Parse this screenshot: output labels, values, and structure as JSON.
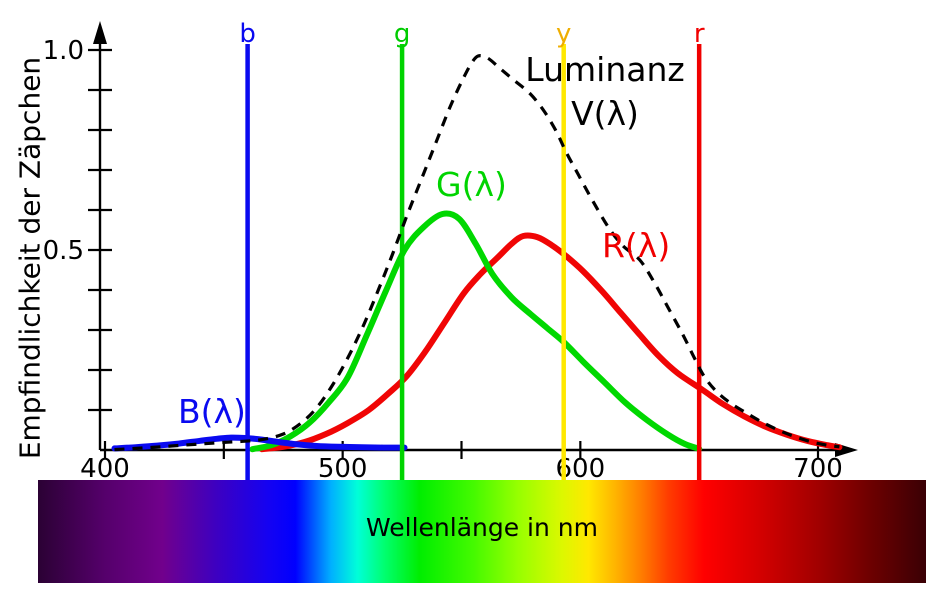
{
  "labels": {
    "luminanz": "Luminanz",
    "v": "V(λ)",
    "g": "G(λ)",
    "r": "R(λ)",
    "b": "B(λ)"
  },
  "chart_data": {
    "type": "line",
    "title": "",
    "ylabel": "Empfindlichkeit der Zäpchen",
    "xlabel": "Wellenlänge in nm",
    "xlim": [
      400,
      700
    ],
    "ylim": [
      0,
      1.05
    ],
    "grid": false,
    "x_axis": {
      "unit": "nm",
      "ticks": [
        {
          "wavelength": 400,
          "label": "400"
        },
        {
          "wavelength": 450,
          "label": ""
        },
        {
          "wavelength": 500,
          "label": "500"
        },
        {
          "wavelength": 550,
          "label": ""
        },
        {
          "wavelength": 600,
          "label": "600"
        },
        {
          "wavelength": 650,
          "label": ""
        },
        {
          "wavelength": 700,
          "label": "700"
        }
      ]
    },
    "y_axis": {
      "ticks": [
        {
          "value": 1.0,
          "label": "1.0"
        },
        {
          "value": 0.9,
          "label": ""
        },
        {
          "value": 0.8,
          "label": ""
        },
        {
          "value": 0.7,
          "label": ""
        },
        {
          "value": 0.6,
          "label": ""
        },
        {
          "value": 0.5,
          "label": "0.5"
        },
        {
          "value": 0.4,
          "label": ""
        },
        {
          "value": 0.3,
          "label": ""
        },
        {
          "value": 0.2,
          "label": ""
        },
        {
          "value": 0.1,
          "label": ""
        }
      ]
    },
    "markers": [
      {
        "label": "b",
        "wavelength": 460,
        "line_color": "#0a0af0",
        "label_color": "#0a0af0"
      },
      {
        "label": "g",
        "wavelength": 525,
        "line_color": "#00d400",
        "label_color": "#00cc00"
      },
      {
        "label": "y",
        "wavelength": 593,
        "line_color": "#ffe800",
        "label_color": "#efae00"
      },
      {
        "label": "r",
        "wavelength": 650,
        "line_color": "#f00000",
        "label_color": "#f00000"
      }
    ],
    "series": [
      {
        "name": "R(λ)",
        "color": "#f00505",
        "style": "solid",
        "width": 6,
        "points": [
          [
            466,
            0.002
          ],
          [
            475,
            0.008
          ],
          [
            484,
            0.02
          ],
          [
            493,
            0.04
          ],
          [
            502,
            0.067
          ],
          [
            511,
            0.1
          ],
          [
            519,
            0.14
          ],
          [
            527,
            0.185
          ],
          [
            535,
            0.248
          ],
          [
            543,
            0.32
          ],
          [
            551,
            0.392
          ],
          [
            558,
            0.44
          ],
          [
            565,
            0.48
          ],
          [
            571,
            0.515
          ],
          [
            576,
            0.535
          ],
          [
            582,
            0.532
          ],
          [
            588,
            0.512
          ],
          [
            594,
            0.485
          ],
          [
            601,
            0.448
          ],
          [
            609,
            0.398
          ],
          [
            617,
            0.343
          ],
          [
            625,
            0.288
          ],
          [
            633,
            0.235
          ],
          [
            641,
            0.192
          ],
          [
            651,
            0.152
          ],
          [
            660,
            0.115
          ],
          [
            669,
            0.084
          ],
          [
            678,
            0.058
          ],
          [
            687,
            0.038
          ],
          [
            696,
            0.022
          ],
          [
            704,
            0.012
          ],
          [
            709,
            0.007
          ]
        ]
      },
      {
        "name": "G(λ)",
        "color": "#00d800",
        "style": "solid",
        "width": 6,
        "points": [
          [
            462,
            0.002
          ],
          [
            470,
            0.012
          ],
          [
            478,
            0.034
          ],
          [
            486,
            0.068
          ],
          [
            494,
            0.118
          ],
          [
            502,
            0.18
          ],
          [
            510,
            0.285
          ],
          [
            518,
            0.395
          ],
          [
            526,
            0.5
          ],
          [
            534,
            0.557
          ],
          [
            542,
            0.59
          ],
          [
            549,
            0.578
          ],
          [
            556,
            0.515
          ],
          [
            563,
            0.44
          ],
          [
            571,
            0.382
          ],
          [
            579,
            0.34
          ],
          [
            586,
            0.305
          ],
          [
            593,
            0.27
          ],
          [
            601,
            0.222
          ],
          [
            610,
            0.17
          ],
          [
            619,
            0.118
          ],
          [
            628,
            0.075
          ],
          [
            637,
            0.038
          ],
          [
            644,
            0.015
          ],
          [
            650,
            0.003
          ]
        ]
      },
      {
        "name": "B(λ)",
        "color": "#0a0af0",
        "style": "solid",
        "width": 6,
        "points": [
          [
            404,
            0.004
          ],
          [
            413,
            0.007
          ],
          [
            422,
            0.011
          ],
          [
            431,
            0.016
          ],
          [
            440,
            0.023
          ],
          [
            447,
            0.028
          ],
          [
            453,
            0.031
          ],
          [
            459,
            0.03
          ],
          [
            466,
            0.026
          ],
          [
            473,
            0.02
          ],
          [
            481,
            0.014
          ],
          [
            489,
            0.01
          ],
          [
            498,
            0.008
          ],
          [
            508,
            0.007
          ],
          [
            517,
            0.006
          ],
          [
            526,
            0.006
          ]
        ]
      },
      {
        "name": "Luminanz V(λ)",
        "color": "#000000",
        "style": "dashed",
        "width": 3.2,
        "points": [
          [
            404,
            0.001
          ],
          [
            416,
            0.005
          ],
          [
            428,
            0.01
          ],
          [
            440,
            0.015
          ],
          [
            450,
            0.019
          ],
          [
            459,
            0.022
          ],
          [
            467,
            0.027
          ],
          [
            475,
            0.04
          ],
          [
            482,
            0.065
          ],
          [
            489,
            0.105
          ],
          [
            496,
            0.165
          ],
          [
            503,
            0.24
          ],
          [
            509,
            0.315
          ],
          [
            515,
            0.4
          ],
          [
            521,
            0.49
          ],
          [
            527,
            0.585
          ],
          [
            533,
            0.675
          ],
          [
            539,
            0.765
          ],
          [
            545,
            0.855
          ],
          [
            550,
            0.92
          ],
          [
            554,
            0.965
          ],
          [
            557,
            0.985
          ],
          [
            561,
            0.98
          ],
          [
            566,
            0.955
          ],
          [
            572,
            0.925
          ],
          [
            579,
            0.89
          ],
          [
            585,
            0.845
          ],
          [
            590,
            0.795
          ],
          [
            594,
            0.745
          ],
          [
            599,
            0.69
          ],
          [
            605,
            0.625
          ],
          [
            612,
            0.555
          ],
          [
            618,
            0.51
          ],
          [
            625,
            0.475
          ],
          [
            631,
            0.42
          ],
          [
            637,
            0.355
          ],
          [
            643,
            0.29
          ],
          [
            648,
            0.23
          ],
          [
            652,
            0.185
          ],
          [
            657,
            0.148
          ],
          [
            663,
            0.118
          ],
          [
            670,
            0.092
          ],
          [
            677,
            0.068
          ],
          [
            684,
            0.048
          ],
          [
            691,
            0.032
          ],
          [
            698,
            0.019
          ],
          [
            704,
            0.012
          ],
          [
            709,
            0.008
          ]
        ]
      }
    ],
    "spectrum_bar": {
      "label": "Wellenlänge in nm",
      "gradient_stops": [
        [
          "0%",
          "#2b0134"
        ],
        [
          "7.5%",
          "#55006b"
        ],
        [
          "14%",
          "#71008c"
        ],
        [
          "20%",
          "#3e00c0"
        ],
        [
          "26%",
          "#1402f2"
        ],
        [
          "29%",
          "#0000ff"
        ],
        [
          "33%",
          "#00b0ff"
        ],
        [
          "36%",
          "#00ffd8"
        ],
        [
          "39%",
          "#00ff70"
        ],
        [
          "43%",
          "#00ee00"
        ],
        [
          "49%",
          "#44fa00"
        ],
        [
          "54%",
          "#96ff00"
        ],
        [
          "59%",
          "#dcf800"
        ],
        [
          "62%",
          "#ffe800"
        ],
        [
          "65%",
          "#ffb400"
        ],
        [
          "68%",
          "#ff7c00"
        ],
        [
          "71%",
          "#ff3c00"
        ],
        [
          "75%",
          "#ff0000"
        ],
        [
          "81%",
          "#d60000"
        ],
        [
          "88%",
          "#a00000"
        ],
        [
          "94%",
          "#6b0000"
        ],
        [
          "100%",
          "#3a0005"
        ]
      ]
    }
  }
}
